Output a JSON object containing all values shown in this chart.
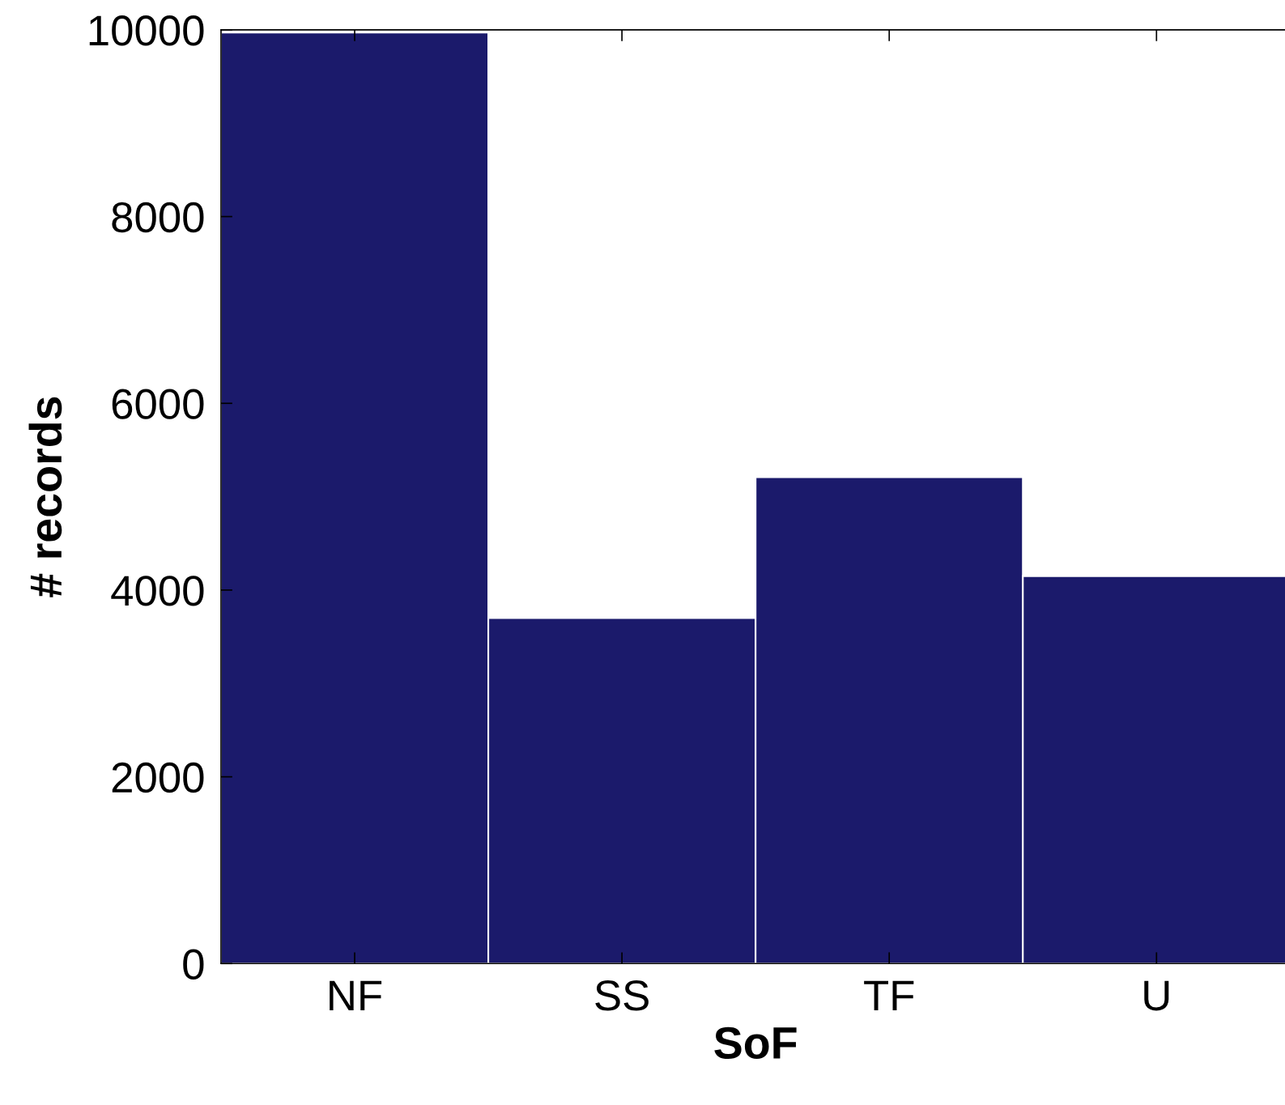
{
  "chart_data": {
    "type": "bar",
    "xlabel": "SoF",
    "ylabel": "# records",
    "categories": [
      "NF",
      "SS",
      "TF",
      "U"
    ],
    "values": [
      9970,
      3700,
      5210,
      4150
    ],
    "color": "#1b1a6b",
    "ylim": [
      0,
      10000
    ],
    "yticks": [
      0,
      2000,
      4000,
      6000,
      8000,
      10000
    ],
    "grid": false
  }
}
